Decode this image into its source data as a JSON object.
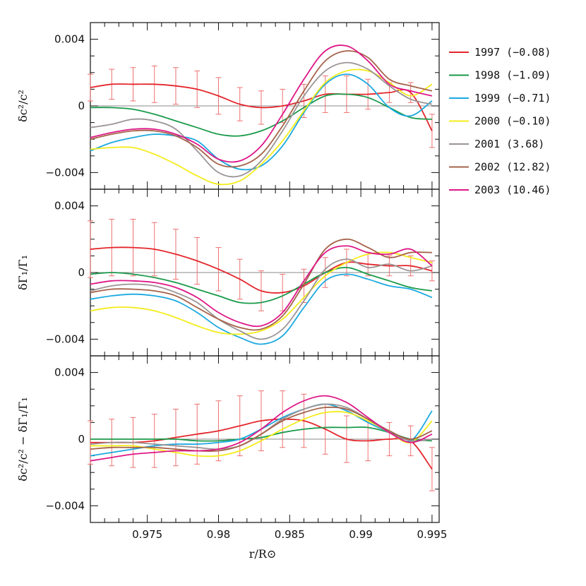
{
  "chart_data": {
    "type": "line",
    "x_range": [
      0.971,
      0.9955
    ],
    "x_ticks": [
      0.975,
      0.98,
      0.985,
      0.99,
      0.995
    ],
    "x_tick_labels": [
      "0.975",
      "0.98",
      "0.985",
      "0.99",
      "0.995"
    ],
    "xlabel": "r/R⊙",
    "x_grid": [
      0.971,
      0.9725,
      0.974,
      0.9755,
      0.977,
      0.9785,
      0.98,
      0.9815,
      0.983,
      0.9845,
      0.986,
      0.9875,
      0.989,
      0.9905,
      0.992,
      0.9935,
      0.995
    ],
    "legend": [
      {
        "label": "1997 (−0.08)",
        "color": "#e3262c"
      },
      {
        "label": "1998 (−1.09)",
        "color": "#1a9a4a"
      },
      {
        "label": "1999 (−0.71)",
        "color": "#1ba9e0"
      },
      {
        "label": "2000 (−0.10)",
        "color": "#f4ec1c"
      },
      {
        "label": "2001 (3.68)",
        "color": "#9c9494"
      },
      {
        "label": "2002 (12.82)",
        "color": "#a5634a"
      },
      {
        "label": "2003 (10.46)",
        "color": "#de1787"
      }
    ],
    "panels": [
      {
        "ylabel": "δc²/c²",
        "ylim": [
          -0.005,
          0.005
        ],
        "y_ticks": [
          -0.004,
          0,
          0.004
        ],
        "y_tick_labels": [
          "−0.004",
          "0",
          "0.004"
        ],
        "error_bar_half_widths": [
          0.0008,
          0.0009,
          0.001,
          0.0011,
          0.0011,
          0.0011,
          0.0011,
          0.001,
          0.001,
          0.001,
          0.001,
          0.0011,
          0.0011,
          0.0009,
          0.0006,
          0.0006,
          0.001
        ],
        "series": [
          {
            "name": "1997",
            "values": [
              0.0011,
              0.0013,
              0.0013,
              0.0013,
              0.0012,
              0.001,
              0.0006,
              0.0001,
              -0.0001,
              0.0,
              0.0003,
              0.0007,
              0.0007,
              0.0007,
              0.0008,
              0.0008,
              -0.0015
            ]
          },
          {
            "name": "1998",
            "values": [
              -0.0001,
              -0.0001,
              -0.0002,
              -0.0005,
              -0.0009,
              -0.0013,
              -0.0017,
              -0.0018,
              -0.0015,
              -0.0009,
              -0.0001,
              0.0006,
              0.0007,
              0.0005,
              -0.0001,
              -0.0007,
              -0.0008
            ]
          },
          {
            "name": "1999",
            "values": [
              -0.0027,
              -0.0022,
              -0.0019,
              -0.0017,
              -0.0018,
              -0.0021,
              -0.0032,
              -0.0038,
              -0.0036,
              -0.0024,
              -0.0004,
              0.0013,
              0.0019,
              0.0013,
              -0.0001,
              -0.0006,
              0.0003
            ]
          },
          {
            "name": "2000",
            "values": [
              -0.0026,
              -0.0025,
              -0.0025,
              -0.0029,
              -0.0035,
              -0.0042,
              -0.0047,
              -0.0045,
              -0.0035,
              -0.0021,
              -0.0003,
              0.0014,
              0.0021,
              0.0021,
              0.0014,
              0.0006,
              0.0013
            ]
          },
          {
            "name": "2001",
            "values": [
              -0.0013,
              -0.0011,
              -0.0008,
              -0.0009,
              -0.0014,
              -0.0027,
              -0.004,
              -0.0042,
              -0.0033,
              -0.0015,
              0.0006,
              0.0021,
              0.0026,
              0.0022,
              0.0012,
              0.0004,
              0.0001
            ]
          },
          {
            "name": "2002",
            "values": [
              -0.002,
              -0.0017,
              -0.0015,
              -0.0015,
              -0.0018,
              -0.0025,
              -0.0035,
              -0.0036,
              -0.0029,
              -0.0012,
              0.0009,
              0.0027,
              0.0033,
              0.0029,
              0.0016,
              0.0012,
              0.0009
            ]
          },
          {
            "name": "2003",
            "values": [
              -0.0019,
              -0.0016,
              -0.0014,
              -0.0014,
              -0.0017,
              -0.0023,
              -0.0032,
              -0.0033,
              -0.0024,
              -0.0005,
              0.0016,
              0.0033,
              0.0036,
              0.0027,
              0.0013,
              0.0009,
              0.0006
            ]
          }
        ]
      },
      {
        "ylabel": "δΓ₁/Γ₁",
        "ylim": [
          -0.005,
          0.005
        ],
        "y_ticks": [
          -0.004,
          0,
          0.004
        ],
        "y_tick_labels": [
          "−0.004",
          "0",
          "0.004"
        ],
        "error_bar_half_widths": [
          0.0017,
          0.0017,
          0.0017,
          0.0016,
          0.0015,
          0.0014,
          0.0013,
          0.0012,
          0.0012,
          0.0011,
          0.001,
          0.0009,
          0.0008,
          0.0007,
          0.0006,
          0.0006,
          0.0006
        ],
        "series": [
          {
            "name": "1997",
            "values": [
              0.0014,
              0.0015,
              0.0015,
              0.0014,
              0.0011,
              0.0007,
              0.0002,
              -0.0004,
              -0.0011,
              -0.0012,
              -0.0008,
              0.0,
              0.0006,
              0.0005,
              0.0004,
              0.0004,
              0.0001
            ]
          },
          {
            "name": "1998",
            "values": [
              -0.0001,
              0.0,
              -0.0001,
              -0.0003,
              -0.0006,
              -0.001,
              -0.0014,
              -0.0018,
              -0.0018,
              -0.0014,
              -0.0007,
              0.0,
              0.0003,
              -0.0001,
              -0.0005,
              -0.0009,
              -0.0011
            ]
          },
          {
            "name": "1999",
            "values": [
              -0.0016,
              -0.0014,
              -0.0013,
              -0.0014,
              -0.0017,
              -0.0024,
              -0.0033,
              -0.0039,
              -0.0043,
              -0.0038,
              -0.0021,
              -0.0005,
              -0.0001,
              -0.0004,
              -0.0008,
              -0.001,
              -0.0015
            ]
          },
          {
            "name": "2000",
            "values": [
              -0.0023,
              -0.0021,
              -0.0021,
              -0.0023,
              -0.0027,
              -0.0032,
              -0.0036,
              -0.0037,
              -0.0035,
              -0.0028,
              -0.0015,
              -0.0002,
              0.0006,
              0.0011,
              0.0012,
              0.0009,
              0.0006
            ]
          },
          {
            "name": "2001",
            "values": [
              -0.0011,
              -0.0008,
              -0.0007,
              -0.0008,
              -0.0012,
              -0.0018,
              -0.0028,
              -0.0035,
              -0.004,
              -0.0034,
              -0.0017,
              0.0002,
              0.0008,
              0.0003,
              0.0005,
              0.0001,
              0.0004
            ]
          },
          {
            "name": "2002",
            "values": [
              -0.0012,
              -0.001,
              -0.001,
              -0.0011,
              -0.0014,
              -0.0021,
              -0.0028,
              -0.0033,
              -0.0034,
              -0.0026,
              -0.0007,
              0.0014,
              0.002,
              0.0015,
              0.0009,
              0.0012,
              0.0012
            ]
          },
          {
            "name": "2003",
            "values": [
              -0.0007,
              -0.0005,
              -0.0005,
              -0.0006,
              -0.0009,
              -0.0015,
              -0.0024,
              -0.003,
              -0.0032,
              -0.0024,
              -0.0005,
              0.0012,
              0.0016,
              0.0012,
              0.0011,
              0.0014,
              0.0004
            ]
          }
        ]
      },
      {
        "ylabel": "δc²/c² − δΓ₁/Γ₁",
        "ylim": [
          -0.005,
          0.005
        ],
        "y_ticks": [
          -0.004,
          0,
          0.004
        ],
        "y_tick_labels": [
          "−0.004",
          "0",
          "0.004"
        ],
        "error_bar_half_widths": [
          0.0013,
          0.0014,
          0.0015,
          0.0016,
          0.0017,
          0.0018,
          0.0018,
          0.0018,
          0.0018,
          0.0017,
          0.0016,
          0.0015,
          0.0014,
          0.0012,
          0.001,
          0.0009,
          0.0013
        ],
        "series": [
          {
            "name": "1997",
            "values": [
              -0.0002,
              -0.0002,
              -0.0002,
              -0.0001,
              0.0001,
              0.0003,
              0.0005,
              0.0008,
              0.0011,
              0.0012,
              0.0011,
              0.0006,
              0.0,
              -0.0001,
              0.0,
              -0.0001,
              -0.0018
            ]
          },
          {
            "name": "1998",
            "values": [
              0.0,
              0.0,
              0.0,
              0.0,
              0.0,
              -0.0001,
              -0.0001,
              0.0,
              0.0001,
              0.0004,
              0.0006,
              0.0007,
              0.0007,
              0.0007,
              0.0004,
              0.0,
              -0.0001
            ]
          },
          {
            "name": "1999",
            "values": [
              -0.001,
              -0.0008,
              -0.0006,
              -0.0004,
              -0.0003,
              -0.0003,
              -0.0002,
              0.0,
              0.0006,
              0.0013,
              0.0018,
              0.0021,
              0.0017,
              0.001,
              0.0004,
              -0.0001,
              0.0017
            ]
          },
          {
            "name": "2000",
            "values": [
              -0.0004,
              -0.0004,
              -0.0004,
              -0.0006,
              -0.0008,
              -0.001,
              -0.001,
              -0.0007,
              -0.0001,
              0.0006,
              0.0012,
              0.0016,
              0.0016,
              0.0011,
              0.0004,
              -0.0002,
              0.0011
            ]
          },
          {
            "name": "2001",
            "values": [
              -0.0003,
              -0.0002,
              -0.0002,
              -0.0003,
              -0.0004,
              -0.0005,
              -0.0006,
              -0.0004,
              0.0003,
              0.0012,
              0.0018,
              0.0021,
              0.0019,
              0.0012,
              0.0004,
              -0.0001,
              0.0
            ]
          },
          {
            "name": "2002",
            "values": [
              -0.0006,
              -0.0005,
              -0.0005,
              -0.0005,
              -0.0006,
              -0.0007,
              -0.0007,
              -0.0004,
              0.0003,
              0.0011,
              0.0016,
              0.0019,
              0.0018,
              0.0012,
              0.0005,
              0.0,
              0.0005
            ]
          },
          {
            "name": "2003",
            "values": [
              -0.0013,
              -0.0011,
              -0.0009,
              -0.0008,
              -0.0007,
              -0.0007,
              -0.0006,
              -0.0002,
              0.0006,
              0.0016,
              0.0023,
              0.0026,
              0.0022,
              0.0013,
              0.0004,
              -0.0002,
              0.0003
            ]
          }
        ]
      }
    ]
  }
}
